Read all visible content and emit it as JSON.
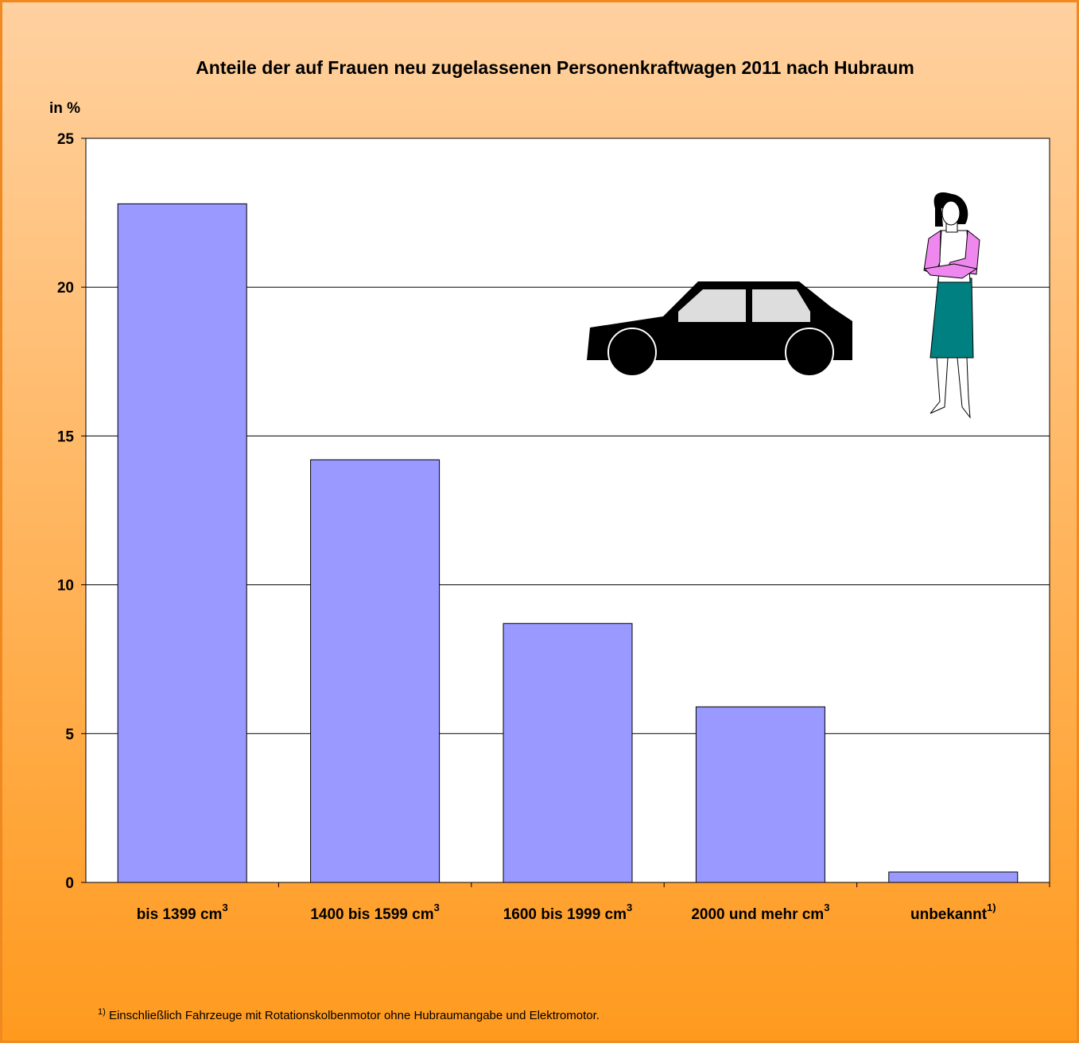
{
  "chart_data": {
    "type": "bar",
    "title": "Anteile der auf Frauen neu zugelassenen Personenkraftwagen 2011 nach Hubraum",
    "y_label": "in %",
    "categories": [
      "bis 1399 cm",
      "1400  bis 1599 cm",
      "1600  bis 1999 cm",
      "2000 und mehr cm",
      "unbekannt"
    ],
    "category_superscripts": [
      "3",
      "3",
      "3",
      "3",
      "1)"
    ],
    "values": [
      22.8,
      14.2,
      8.7,
      5.9,
      0.35
    ],
    "color": "#9999ff",
    "ylim": [
      0,
      25
    ],
    "yticks": [
      0,
      5,
      10,
      15,
      20,
      25
    ],
    "grid": true,
    "footnote_marker": "1)",
    "footnote": " Einschließlich Fahrzeuge mit Rotationskolbenmotor ohne Hubraumangabe und Elektromotor."
  }
}
